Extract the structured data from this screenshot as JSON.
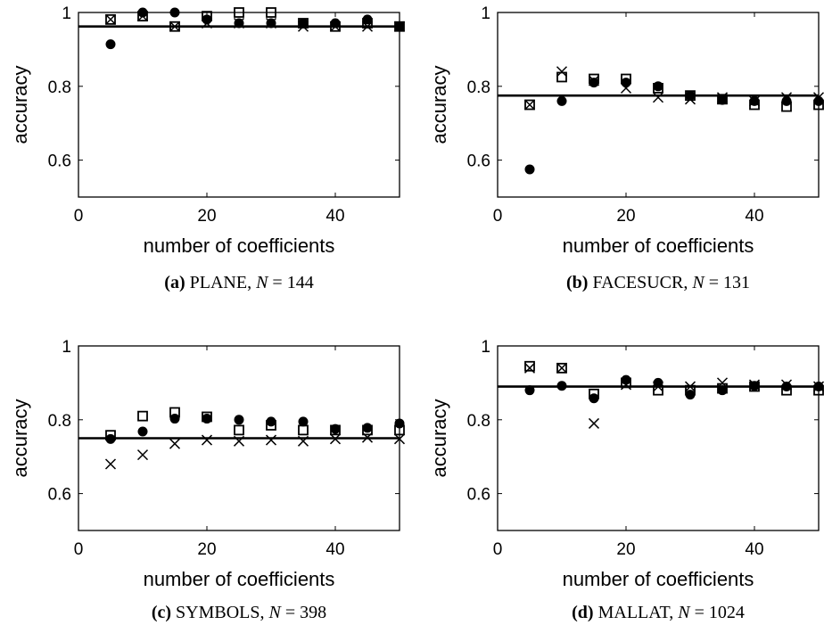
{
  "chart_data": [
    {
      "type": "scatter",
      "panel_tag": "(a)",
      "dataset": "PLANE",
      "n_label": "N",
      "n_value": "= 144",
      "xlabel": "number of coefficients",
      "ylabel": "accuracy",
      "xlim": [
        0,
        50
      ],
      "ylim": [
        0.5,
        1.0
      ],
      "xticks": [
        "0",
        "20",
        "40"
      ],
      "yticks": [
        "0.6",
        "0.8",
        "1"
      ],
      "grid": false,
      "reference_line": 0.962,
      "x": [
        5,
        10,
        15,
        20,
        25,
        30,
        35,
        40,
        45,
        50
      ],
      "series": [
        {
          "marker": "square",
          "values": [
            0.981,
            0.99,
            0.962,
            0.99,
            1.0,
            1.0,
            0.971,
            0.962,
            0.971,
            0.962
          ]
        },
        {
          "marker": "circle",
          "values": [
            0.914,
            1.0,
            1.0,
            0.981,
            0.971,
            0.971,
            0.971,
            0.971,
            0.981,
            0.962
          ]
        },
        {
          "marker": "cross",
          "values": [
            0.981,
            0.99,
            0.962,
            0.971,
            0.971,
            0.971,
            0.962,
            0.962,
            0.962,
            0.962
          ]
        }
      ]
    },
    {
      "type": "scatter",
      "panel_tag": "(b)",
      "dataset": "FACESUCR",
      "n_label": "N",
      "n_value": "= 131",
      "xlabel": "number of coefficients",
      "ylabel": "accuracy",
      "xlim": [
        0,
        50
      ],
      "ylim": [
        0.5,
        1.0
      ],
      "xticks": [
        "0",
        "20",
        "40"
      ],
      "yticks": [
        "0.6",
        "0.8",
        "1"
      ],
      "grid": false,
      "reference_line": 0.775,
      "x": [
        5,
        10,
        15,
        20,
        25,
        30,
        35,
        40,
        45,
        50
      ],
      "series": [
        {
          "marker": "square",
          "values": [
            0.75,
            0.825,
            0.82,
            0.82,
            0.795,
            0.775,
            0.765,
            0.75,
            0.745,
            0.75
          ]
        },
        {
          "marker": "circle",
          "values": [
            0.575,
            0.76,
            0.81,
            0.81,
            0.8,
            0.775,
            0.763,
            0.76,
            0.76,
            0.76
          ]
        },
        {
          "marker": "cross",
          "values": [
            0.75,
            0.84,
            0.815,
            0.795,
            0.77,
            0.765,
            0.77,
            0.76,
            0.77,
            0.77
          ]
        }
      ]
    },
    {
      "type": "scatter",
      "panel_tag": "(c)",
      "dataset": "SYMBOLS",
      "n_label": "N",
      "n_value": "= 398",
      "xlabel": "number of coefficients",
      "ylabel": "accuracy",
      "xlim": [
        0,
        50
      ],
      "ylim": [
        0.5,
        1.0
      ],
      "xticks": [
        "0",
        "20",
        "40"
      ],
      "yticks": [
        "0.6",
        "0.8",
        "1"
      ],
      "grid": false,
      "reference_line": 0.75,
      "x": [
        5,
        10,
        15,
        20,
        25,
        30,
        35,
        40,
        45,
        50
      ],
      "series": [
        {
          "marker": "square",
          "values": [
            0.758,
            0.81,
            0.82,
            0.808,
            0.772,
            0.785,
            0.772,
            0.772,
            0.772,
            0.772
          ]
        },
        {
          "marker": "circle",
          "values": [
            0.748,
            0.768,
            0.803,
            0.803,
            0.8,
            0.795,
            0.795,
            0.775,
            0.778,
            0.79
          ]
        },
        {
          "marker": "cross",
          "values": [
            0.68,
            0.705,
            0.735,
            0.745,
            0.742,
            0.745,
            0.742,
            0.748,
            0.752,
            0.748
          ]
        }
      ]
    },
    {
      "type": "scatter",
      "panel_tag": "(d)",
      "dataset": "MALLAT",
      "n_label": "N",
      "n_value": "= 1024",
      "xlabel": "number of coefficients",
      "ylabel": "accuracy",
      "xlim": [
        0,
        50
      ],
      "ylim": [
        0.5,
        1.0
      ],
      "xticks": [
        "0",
        "20",
        "40"
      ],
      "yticks": [
        "0.6",
        "0.8",
        "1"
      ],
      "grid": false,
      "reference_line": 0.89,
      "x": [
        5,
        10,
        15,
        20,
        25,
        30,
        35,
        40,
        45,
        50
      ],
      "series": [
        {
          "marker": "square",
          "values": [
            0.945,
            0.94,
            0.87,
            0.9,
            0.88,
            0.88,
            0.885,
            0.89,
            0.88,
            0.88
          ]
        },
        {
          "marker": "circle",
          "values": [
            0.88,
            0.892,
            0.858,
            0.908,
            0.9,
            0.868,
            0.88,
            0.892,
            0.89,
            0.89
          ]
        },
        {
          "marker": "cross",
          "values": [
            0.94,
            0.94,
            0.79,
            0.895,
            0.89,
            0.89,
            0.9,
            0.895,
            0.895,
            0.89
          ]
        }
      ]
    }
  ]
}
